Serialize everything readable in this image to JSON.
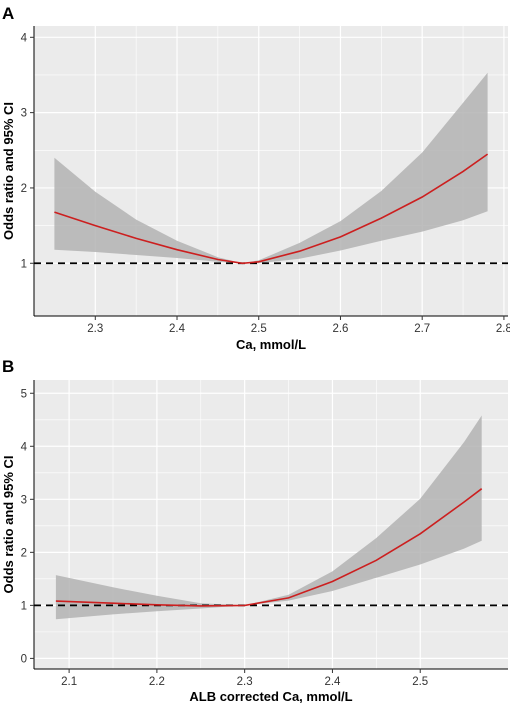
{
  "chart_data": [
    {
      "type": "line",
      "panel_label": "A",
      "title": "",
      "xlabel": "Ca, mmol/L",
      "ylabel": "Odds ratio and 95% CI",
      "xlim": [
        2.225,
        2.805
      ],
      "ylim": [
        0.3,
        4.15
      ],
      "xticks": [
        "2.3",
        "2.4",
        "2.5",
        "2.6",
        "2.7",
        "2.8"
      ],
      "yticks": [
        "1",
        "2",
        "3",
        "4"
      ],
      "reference_line": 1,
      "grid": true,
      "colors": {
        "line": "#cc1f1f",
        "band": "#b3b3b3",
        "panel_bg": "#ebebeb",
        "grid": "#ffffff"
      },
      "series": [
        {
          "x": [
            2.25,
            2.3,
            2.35,
            2.4,
            2.45,
            2.48,
            2.5,
            2.55,
            2.6,
            2.65,
            2.7,
            2.75,
            2.78
          ],
          "values": [
            1.68,
            1.5,
            1.33,
            1.18,
            1.05,
            1.0,
            1.02,
            1.16,
            1.35,
            1.6,
            1.88,
            2.22,
            2.45
          ],
          "lower": [
            1.18,
            1.15,
            1.11,
            1.07,
            1.02,
            1.0,
            1.0,
            1.06,
            1.17,
            1.3,
            1.42,
            1.57,
            1.69
          ],
          "upper": [
            2.4,
            1.95,
            1.58,
            1.3,
            1.08,
            1.0,
            1.04,
            1.27,
            1.56,
            1.96,
            2.47,
            3.13,
            3.53
          ]
        }
      ]
    },
    {
      "type": "line",
      "panel_label": "B",
      "title": "",
      "xlabel": "ALB corrected Ca, mmol/L",
      "ylabel": "Odds ratio and 95% CI",
      "xlim": [
        2.06,
        2.6
      ],
      "ylim": [
        -0.2,
        5.25
      ],
      "xticks": [
        "2.1",
        "2.2",
        "2.3",
        "2.4",
        "2.5"
      ],
      "yticks": [
        "0",
        "1",
        "2",
        "3",
        "4",
        "5"
      ],
      "reference_line": 1,
      "grid": true,
      "colors": {
        "line": "#cc1f1f",
        "band": "#b3b3b3",
        "panel_bg": "#ebebeb",
        "grid": "#ffffff"
      },
      "series": [
        {
          "x": [
            2.085,
            2.15,
            2.2,
            2.25,
            2.3,
            2.35,
            2.4,
            2.45,
            2.5,
            2.55,
            2.57
          ],
          "values": [
            1.08,
            1.04,
            1.01,
            0.99,
            1.0,
            1.14,
            1.45,
            1.85,
            2.35,
            2.95,
            3.2
          ],
          "lower": [
            0.74,
            0.83,
            0.89,
            0.94,
            1.0,
            1.09,
            1.27,
            1.52,
            1.77,
            2.07,
            2.22
          ],
          "upper": [
            1.57,
            1.34,
            1.18,
            1.04,
            1.0,
            1.2,
            1.64,
            2.27,
            3.01,
            4.08,
            4.58
          ]
        }
      ]
    }
  ]
}
